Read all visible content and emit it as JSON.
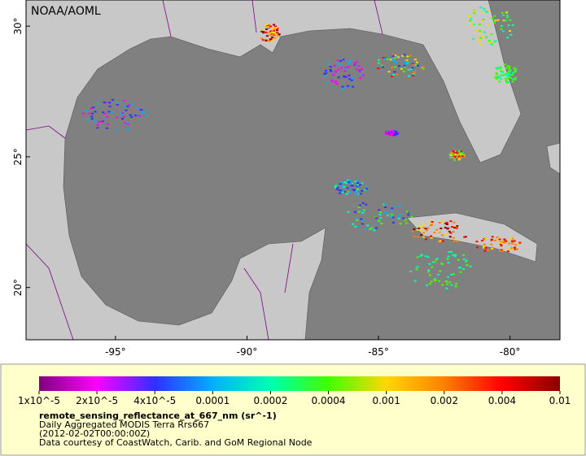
{
  "watermark": "NOAA/AOML",
  "map": {
    "xlim": [
      -98.4,
      -78.1
    ],
    "ylim": [
      18,
      31
    ],
    "xticks": [
      {
        "value": -95,
        "label": "-95°"
      },
      {
        "value": -90,
        "label": "-90°"
      },
      {
        "value": -85,
        "label": "-85°"
      },
      {
        "value": -80,
        "label": "-80°"
      }
    ],
    "yticks": [
      {
        "value": 20,
        "label": "20°"
      },
      {
        "value": 25,
        "label": "25°"
      },
      {
        "value": 30,
        "label": "30°"
      }
    ]
  },
  "colorbar": {
    "scale": "log",
    "ticks": [
      {
        "value": 1e-05,
        "label": "1x10^-5"
      },
      {
        "value": 2e-05,
        "label": "2x10^-5"
      },
      {
        "value": 4e-05,
        "label": "4x10^-5"
      },
      0.0001,
      0.0002,
      0.0004,
      0.001,
      0.002,
      0.004,
      0.01
    ],
    "colors": [
      "#800080",
      "#ff00ff",
      "#3030ff",
      "#00b0ff",
      "#00ffb0",
      "#40ff00",
      "#ffd700",
      "#ff8000",
      "#ff0000",
      "#8b0000"
    ]
  },
  "legend": {
    "variable": "remote_sensing_reflectance_at_667_nm (sr^-1)",
    "description": "Daily Aggregated MODIS Terra Rrs667",
    "time": "(2012-02-02T00:00:00Z)",
    "credit": "Data courtesy of CoastWatch, Carib. and GoM Regional Node"
  }
}
